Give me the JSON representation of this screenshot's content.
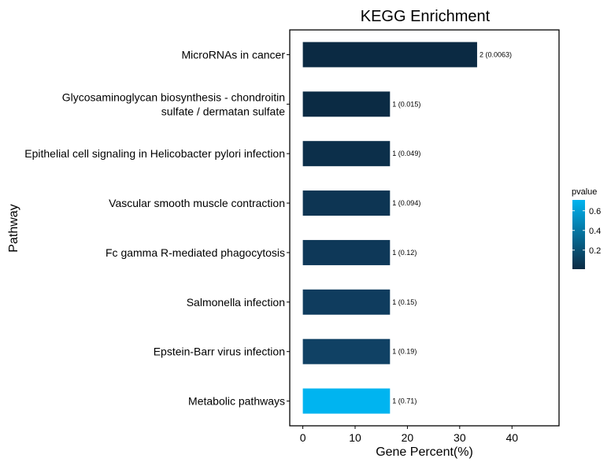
{
  "chart_data": {
    "type": "bar",
    "orientation": "horizontal",
    "title": "KEGG Enrichment",
    "xlabel": "Gene Percent(%)",
    "ylabel": "Pathway",
    "xlim": [
      -2.5,
      49
    ],
    "xticks": [
      0,
      10,
      20,
      30,
      40
    ],
    "grid": false,
    "categories": [
      [
        "MicroRNAs in cancer"
      ],
      [
        "Glycosaminoglycan biosynthesis - chondroitin",
        "sulfate / dermatan sulfate"
      ],
      [
        "Epithelial cell signaling in Helicobacter pylori infection"
      ],
      [
        "Vascular smooth muscle contraction"
      ],
      [
        "Fc gamma R-mediated phagocytosis"
      ],
      [
        "Salmonella infection"
      ],
      [
        "Epstein-Barr virus infection"
      ],
      [
        "Metabolic pathways"
      ]
    ],
    "values": [
      33.33,
      16.67,
      16.67,
      16.67,
      16.67,
      16.67,
      16.67,
      16.67
    ],
    "pvalues": [
      0.0063,
      0.015,
      0.049,
      0.094,
      0.12,
      0.15,
      0.19,
      0.71
    ],
    "bar_labels": [
      "2 (0.0063)",
      "1 (0.015)",
      "1 (0.049)",
      "1 (0.094)",
      "1 (0.12)",
      "1 (0.15)",
      "1 (0.19)",
      "1 (0.71)"
    ],
    "colors": [
      "#0b2a43",
      "#0b2b44",
      "#0c2f4a",
      "#0d3553",
      "#0e3858",
      "#0f3c5e",
      "#104164",
      "#00b4f0"
    ],
    "legend": {
      "title": "pvalue",
      "position": "right",
      "ticks": [
        0.2,
        0.4,
        0.6
      ],
      "tick_labels": [
        "0.2",
        "0.4",
        "0.6"
      ],
      "range": [
        0.0063,
        0.71
      ],
      "color_low": "#0b2a43",
      "color_high": "#00b4f0"
    }
  }
}
